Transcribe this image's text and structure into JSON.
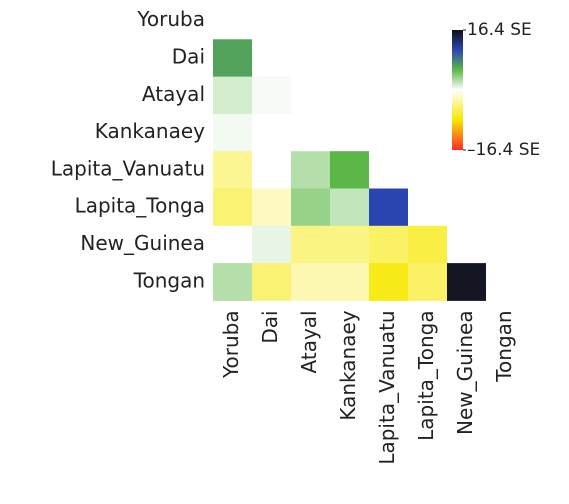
{
  "chart_data": {
    "type": "heatmap",
    "rows": [
      "Yoruba",
      "Dai",
      "Atayal",
      "Kankanaey",
      "Lapita_Vanuatu",
      "Lapita_Tonga",
      "New_Guinea",
      "Tongan"
    ],
    "columns": [
      "Yoruba",
      "Dai",
      "Atayal",
      "Kankanaey",
      "Lapita_Vanuatu",
      "Lapita_Tonga",
      "New_Guinea",
      "Tongan"
    ],
    "values": [
      [
        0
      ],
      [
        6.5,
        0
      ],
      [
        1.5,
        0.3,
        0
      ],
      [
        0.4,
        0,
        0,
        0
      ],
      [
        -3.5,
        0,
        2.5,
        5.5,
        0
      ],
      [
        -4.5,
        -2,
        3.5,
        2,
        11,
        0
      ],
      [
        0,
        0.8,
        -4,
        -4,
        -5,
        -6,
        0
      ],
      [
        2.5,
        -4.5,
        -2.5,
        -2.5,
        -7.5,
        -5,
        15.8,
        0
      ]
    ],
    "zlim": [
      -16.4,
      16.4
    ],
    "zticks": [
      {
        "value": 16.4,
        "label": "16.4 SE"
      },
      {
        "value": -16.4,
        "label": "–16.4 SE"
      }
    ],
    "negative_colors": [
      "#ffffff",
      "#f6e800",
      "#ff2a2a"
    ],
    "positive_colors": [
      "#ffffff",
      "#5cb847",
      "#2a46b2",
      "#111111"
    ]
  }
}
